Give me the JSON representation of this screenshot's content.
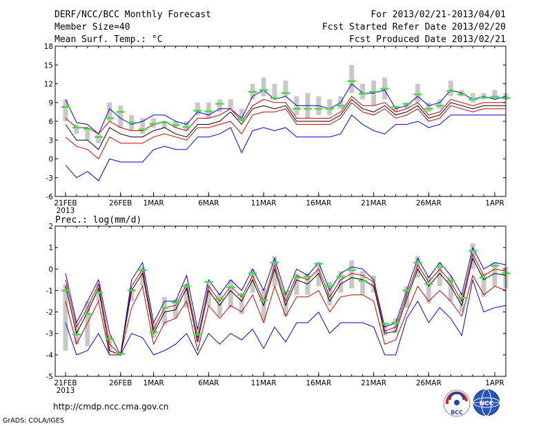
{
  "header": {
    "left": [
      "DERF/NCC/BCC Monthly Forecast",
      "Member Size=40",
      "Mean Surf. Temp.: °C"
    ],
    "right": [
      "For 2013/02/21-2013/04/01",
      "Fcst Started Refer Date 2013/02/20",
      "Fcst Produced Date 2013/02/21"
    ]
  },
  "footer": {
    "url": "http://cmdp.ncc.cma.gov.cn",
    "credit": "GrADS: COLA/IGES",
    "logos": [
      "BCC",
      "NCC"
    ]
  },
  "colors": {
    "blue": "#0000dd",
    "red": "#cc0000",
    "black": "#000000",
    "gray": "#c8c8c8",
    "green": "#44dd44"
  },
  "chart_data": [
    {
      "type": "line",
      "title": "Mean Surf. Temp.: °C",
      "xticks": [
        {
          "day": 0,
          "label": "21FEB",
          "sub": "2013"
        },
        {
          "day": 5,
          "label": "26FEB"
        },
        {
          "day": 8,
          "label": "1MAR"
        },
        {
          "day": 13,
          "label": "6MAR"
        },
        {
          "day": 18,
          "label": "11MAR"
        },
        {
          "day": 23,
          "label": "16MAR"
        },
        {
          "day": 28,
          "label": "21MAR"
        },
        {
          "day": 33,
          "label": "26MAR"
        },
        {
          "day": 39,
          "label": "1APR"
        }
      ],
      "ylim": [
        -6,
        18
      ],
      "yticks": [
        -6,
        -3,
        0,
        3,
        6,
        9,
        12,
        15,
        18
      ],
      "upper_blue": [
        9.5,
        5.8,
        5.5,
        4,
        8,
        6.5,
        5.5,
        6,
        7,
        7,
        6,
        5.5,
        7.5,
        7,
        8,
        8,
        6.5,
        10,
        11,
        9.5,
        10,
        8.5,
        8.5,
        8.5,
        8,
        9,
        12,
        10.5,
        10.5,
        11,
        8,
        8.5,
        10,
        8.5,
        9,
        11,
        10.5,
        9.5,
        10,
        9.5,
        10
      ],
      "upper_red": [
        6.5,
        5,
        5,
        4,
        6,
        5,
        4.5,
        4.5,
        5.5,
        6,
        5,
        4.5,
        6.5,
        6.5,
        7,
        8,
        6,
        8.5,
        9.5,
        9,
        9,
        6.5,
        6.5,
        6.5,
        6.5,
        7.5,
        10,
        8.5,
        8.5,
        9,
        7.5,
        8,
        9,
        7,
        7.5,
        9.5,
        9,
        8.5,
        9,
        9,
        9
      ],
      "mean": [
        5.5,
        3,
        3,
        1.5,
        5,
        4,
        3.5,
        3.5,
        4.5,
        5,
        4,
        3.5,
        5.5,
        5.5,
        6,
        7.5,
        5.5,
        8,
        8.5,
        8,
        8.5,
        6,
        6,
        6,
        6,
        7,
        9.5,
        8,
        7.5,
        8.5,
        7,
        7.5,
        8.5,
        6.5,
        7,
        9,
        8.5,
        8,
        8.5,
        8.5,
        8.5
      ],
      "lower_red": [
        3.5,
        2,
        1.5,
        0,
        3.5,
        2.5,
        2.5,
        2.5,
        3.5,
        4,
        3.5,
        3,
        5,
        5,
        5.5,
        6,
        4,
        7,
        7.5,
        7.5,
        8,
        5.5,
        5.5,
        5.5,
        5.5,
        6.5,
        9,
        7.5,
        7,
        8,
        6.5,
        7,
        8,
        6,
        6.5,
        8.5,
        8,
        7.5,
        8,
        8,
        8
      ],
      "lower_blue": [
        -1,
        -3,
        -2,
        -3.5,
        0,
        -0.5,
        -0.5,
        -0.5,
        1.5,
        2,
        1.5,
        1.5,
        3.5,
        3.5,
        4,
        5,
        1,
        4.5,
        5,
        4.5,
        5,
        3.5,
        3.5,
        3.5,
        3.5,
        4,
        7,
        5.5,
        4.5,
        4,
        5.5,
        5.5,
        6,
        5,
        5.5,
        7,
        7,
        7,
        7,
        7,
        7
      ],
      "members_box_low": [
        6,
        4,
        3,
        2.5,
        6,
        5,
        4.5,
        4,
        5,
        5,
        5,
        4.5,
        7,
        6.5,
        7.5,
        8,
        6.5,
        9.5,
        10,
        9.5,
        10,
        7,
        6.5,
        7,
        7,
        8,
        10.5,
        9.5,
        8.5,
        9.5,
        7.5,
        8,
        9,
        7.5,
        8,
        10,
        10,
        9,
        9.5,
        9.5,
        9.5
      ],
      "members_box_high": [
        9.5,
        5.5,
        5,
        4,
        9,
        8.5,
        7,
        6.5,
        6.5,
        6,
        6,
        6,
        9,
        9,
        9.5,
        9.5,
        8,
        12,
        13,
        12,
        12.5,
        10,
        10.5,
        10,
        9.5,
        10,
        15,
        12,
        12.5,
        13,
        8.5,
        9,
        12,
        9,
        9.5,
        12.5,
        11,
        10.5,
        10.5,
        11,
        10.5
      ],
      "observed": [
        8.3,
        5,
        4.8,
        3.5,
        6.5,
        7.5,
        5.8,
        4.7,
        5.6,
        5.8,
        5.4,
        5.1,
        7.7,
        7.6,
        8.8,
        null,
        6.3,
        10.7,
        11,
        9.7,
        10.5,
        8,
        8,
        8,
        8,
        8.5,
        12.4,
        10.4,
        10.7,
        11.2,
        8.3,
        8.8,
        10.3,
        8,
        8.5,
        10.8,
        10.3,
        9.5,
        9.8,
        9.9,
        9.7
      ]
    },
    {
      "type": "line",
      "title": "Prec.: log(mm/d)",
      "xticks": [
        {
          "day": 0,
          "label": "21FEB",
          "sub": "2013"
        },
        {
          "day": 5,
          "label": "26FEB"
        },
        {
          "day": 8,
          "label": "1MAR"
        },
        {
          "day": 13,
          "label": "6MAR"
        },
        {
          "day": 18,
          "label": "11MAR"
        },
        {
          "day": 23,
          "label": "16MAR"
        },
        {
          "day": 28,
          "label": "21MAR"
        },
        {
          "day": 33,
          "label": "26MAR"
        },
        {
          "day": 39,
          "label": "1APR"
        }
      ],
      "ylim": [
        -5,
        2
      ],
      "yticks": [
        -5,
        -4,
        -3,
        -2,
        -1,
        0,
        1,
        2
      ],
      "upper_blue": [
        -0.2,
        -2.5,
        -1.5,
        -0.5,
        -3,
        -4,
        -0.5,
        0.3,
        -2.5,
        -1.5,
        -1.5,
        -0.3,
        -2.8,
        -0.5,
        -1.2,
        -0.5,
        -1,
        0,
        -1,
        0.5,
        -1.2,
        0,
        -0.3,
        0.3,
        -1,
        -0.2,
        0.1,
        0,
        -0.5,
        -2.7,
        -2.5,
        -1,
        0.5,
        -0.4,
        0.3,
        -0.3,
        -1.2,
        1,
        0,
        0.3,
        0.2
      ],
      "upper_red": [
        -0.5,
        -2.7,
        -1.8,
        -0.7,
        -3.5,
        -4,
        -0.8,
        0,
        -2.8,
        -1.8,
        -1.7,
        -0.7,
        -3.2,
        -0.8,
        -1.5,
        -0.8,
        -1.3,
        -0.3,
        -1.5,
        0.2,
        -1.5,
        -0.3,
        -0.5,
        0,
        -1.3,
        -0.5,
        -0.2,
        -0.3,
        -0.6,
        -2.9,
        -2.7,
        -1.2,
        0.2,
        -0.6,
        0,
        -0.6,
        -1.5,
        0.7,
        -0.3,
        0,
        -0.1
      ],
      "mean": [
        -0.8,
        -3,
        -2,
        -0.9,
        -3.8,
        -4,
        -1,
        -0.2,
        -3,
        -2,
        -1.9,
        -0.9,
        -3.4,
        -1,
        -1.7,
        -1,
        -1.5,
        -0.5,
        -1.7,
        0,
        -1.7,
        -0.5,
        -0.7,
        -0.2,
        -1.5,
        -0.7,
        -0.4,
        -0.5,
        -0.8,
        -3,
        -2.9,
        -1.4,
        0,
        -0.8,
        -0.2,
        -0.8,
        -1.7,
        0.5,
        -0.5,
        -0.2,
        -0.3
      ],
      "lower_red": [
        -1.5,
        -3.5,
        -2.5,
        -1.5,
        -4,
        -4,
        -1.8,
        -0.8,
        -3.5,
        -2.5,
        -2.3,
        -1.5,
        -3.8,
        -1.7,
        -2.3,
        -1.7,
        -2,
        -1.2,
        -2.5,
        -0.8,
        -2.2,
        -1.3,
        -1.3,
        -1,
        -2,
        -1.3,
        -1.2,
        -1.2,
        -1.5,
        -3.5,
        -3.3,
        -2,
        -0.8,
        -1.5,
        -1,
        -1.5,
        -2.2,
        -0.3,
        -1.2,
        -0.8,
        -1
      ],
      "lower_blue": [
        -2.5,
        -4,
        -3.8,
        -3,
        -4,
        -4,
        -3,
        -3.2,
        -4,
        -3.8,
        -3.5,
        -3,
        -4,
        -3,
        -3.5,
        -3,
        -3.3,
        -2.8,
        -3.7,
        -2.7,
        -3.4,
        -2.5,
        -2.5,
        -2,
        -3,
        -2.5,
        -2.5,
        -2.5,
        -2.7,
        -4,
        -4,
        -2.3,
        -1.5,
        -2.5,
        -1.8,
        -2.3,
        -3.1,
        -0.5,
        -2,
        -1.8,
        -1.7
      ],
      "members_box_low": [
        -3.8,
        -3.5,
        -3.6,
        -1.5,
        -3.8,
        -4,
        -1.5,
        -0.8,
        -3.2,
        -2.6,
        -2.3,
        -1.8,
        -3.4,
        -1.7,
        -2.2,
        -1.8,
        -2.1,
        -1.1,
        -2.4,
        -0.8,
        -2.2,
        -1.2,
        -1.2,
        -0.8,
        -1.7,
        -1.1,
        -0.9,
        -1.2,
        -1.1,
        -3.1,
        -3,
        -1.8,
        -0.4,
        -1.6,
        -0.8,
        -1.5,
        -2,
        0,
        -1.3,
        -0.8,
        -0.9
      ],
      "members_box_high": [
        -0.7,
        -2.5,
        -1.5,
        -0.7,
        -3.1,
        -3.9,
        -0.9,
        0.1,
        -2.5,
        -1.3,
        -1.4,
        -0.7,
        -2.7,
        -0.7,
        -1.1,
        -0.5,
        -1.1,
        0,
        -0.9,
        0.6,
        -1,
        -0.2,
        -0.2,
        0.3,
        -0.6,
        -0.1,
        0.4,
        -0.1,
        -0.3,
        -2.5,
        -2.3,
        -0.8,
        0.6,
        -0.3,
        0.3,
        -0.3,
        -1.1,
        1.2,
        -0.2,
        0.3,
        0.1
      ],
      "observed": [
        -1,
        -3.05,
        -2.1,
        -1.1,
        -3.25,
        -3.95,
        -1,
        -0.05,
        -2.95,
        -1.8,
        -1.55,
        -0.8,
        -3.05,
        -0.6,
        -1.4,
        -0.85,
        -1.2,
        -0.2,
        -1.45,
        0.3,
        -1.05,
        -0.4,
        -0.35,
        0.25,
        -0.8,
        -0.35,
        -0.05,
        -0.55,
        null,
        -2.55,
        -2.5,
        -1,
        0.3,
        -0.7,
        0.1,
        -0.55,
        -1.35,
        0.85,
        -0.4,
        0.15,
        -0.2
      ]
    }
  ]
}
